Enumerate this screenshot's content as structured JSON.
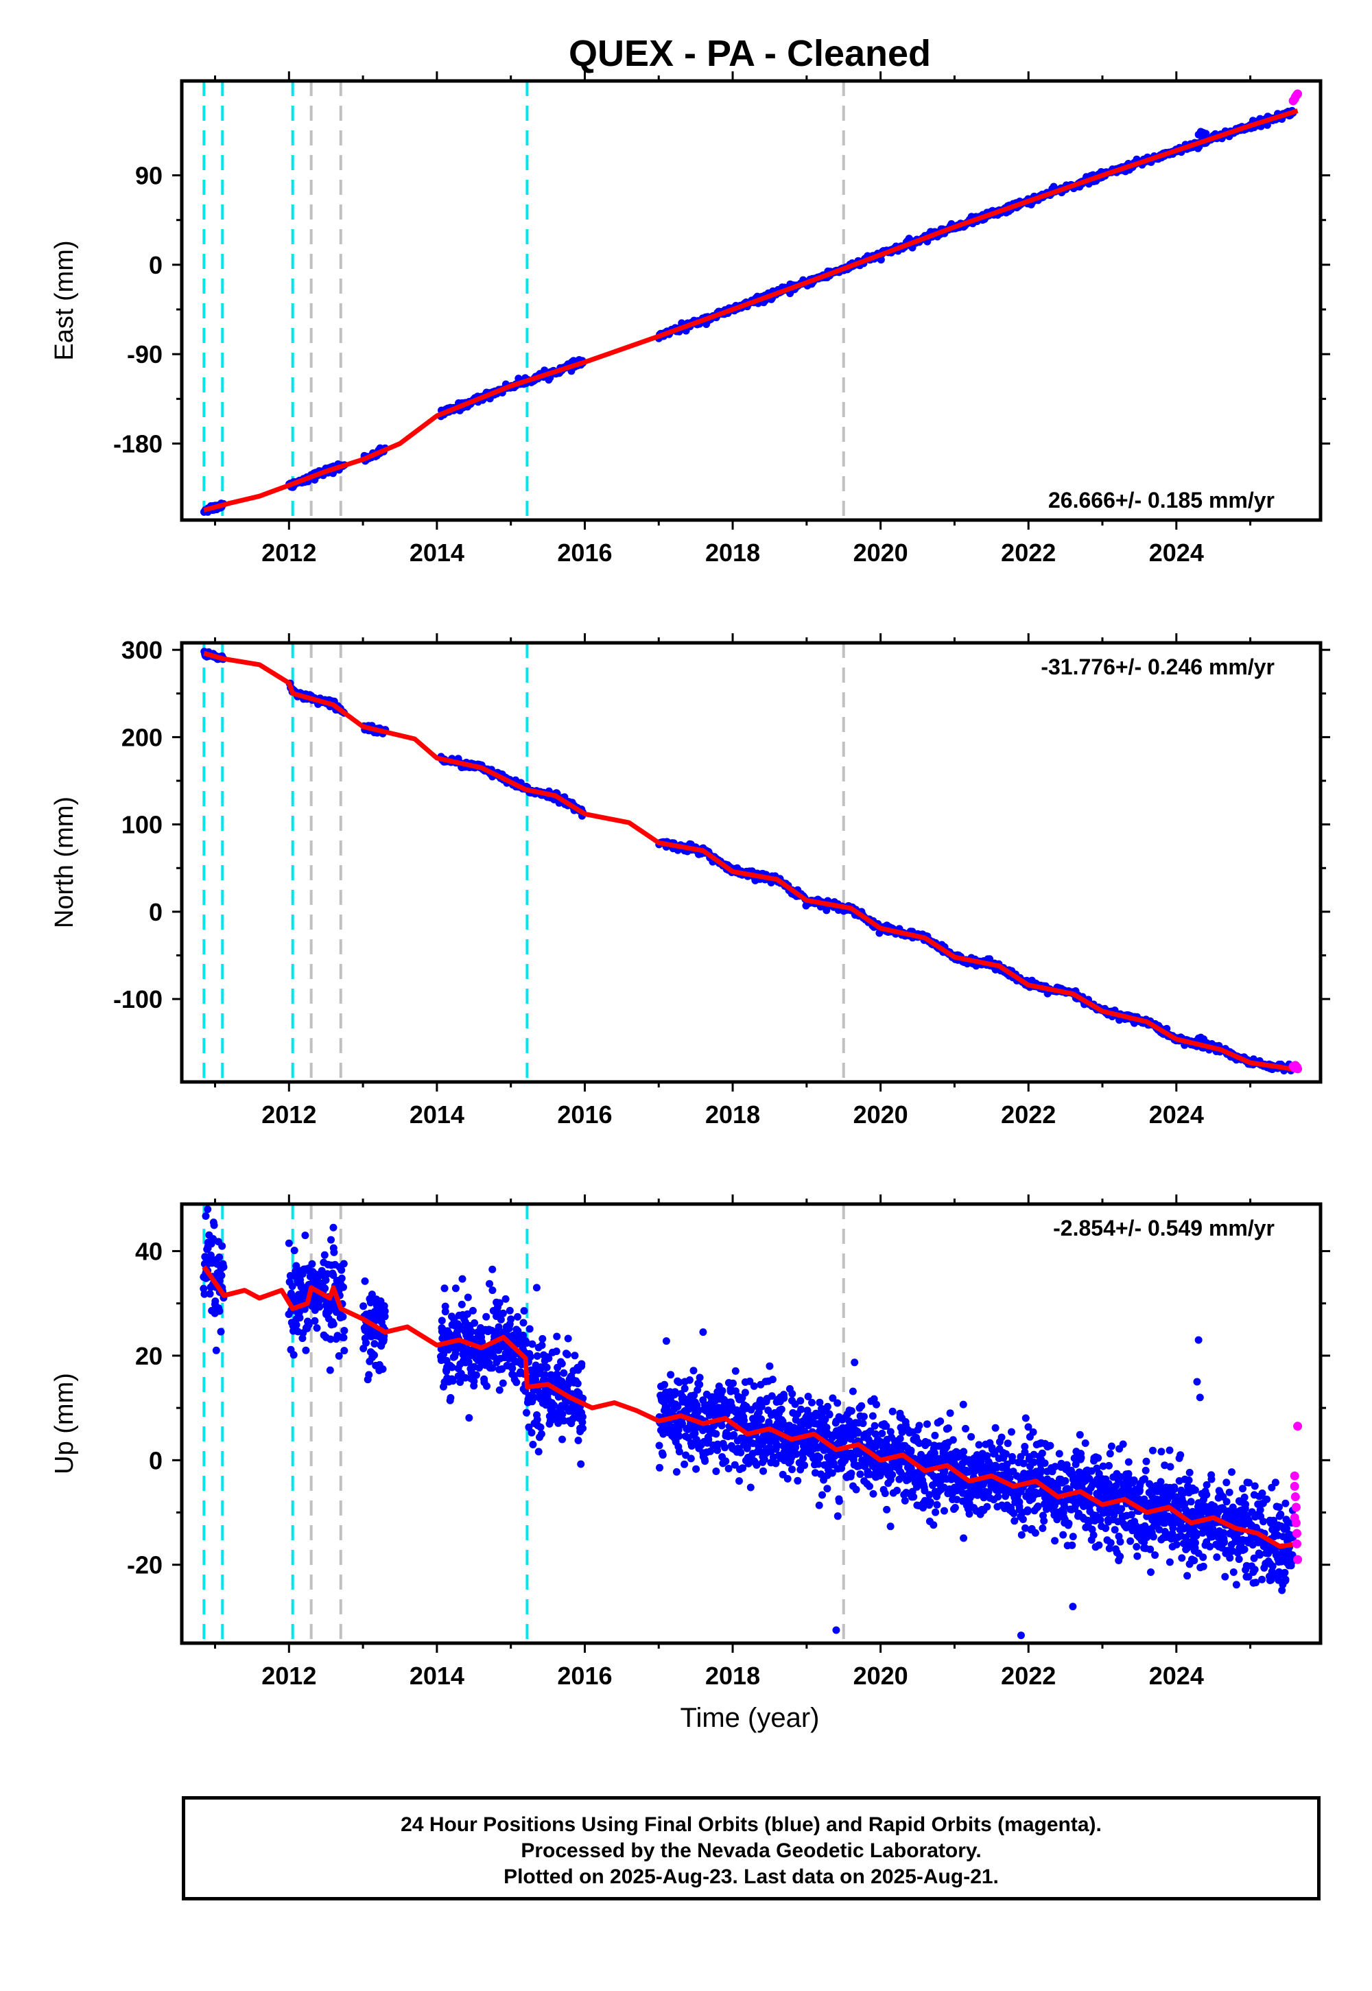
{
  "title": "QUEX  - PA - Cleaned",
  "xlabel": "Time (year)",
  "colors": {
    "final": "#0000ff",
    "rapid": "#ff00ff",
    "model": "#ff0000",
    "break_cyan": "#00e5ee",
    "break_gray": "#c0c0c0",
    "frame": "#000000"
  },
  "footer": {
    "line1": "24 Hour Positions Using Final Orbits (blue) and Rapid Orbits (magenta).",
    "line2": "Processed by the Nevada Geodetic Laboratory.",
    "line3": "Plotted on 2025-Aug-23. Last data on 2025-Aug-21."
  },
  "chart_data": [
    {
      "type": "scatter",
      "ylabel": "East (mm)",
      "rate_label": "26.666+/- 0.185 mm/yr",
      "rate_label_position": "bottom-right",
      "xlim": [
        2010.55,
        2025.95
      ],
      "ylim": [
        -257,
        185
      ],
      "yticks": [
        -180,
        -90,
        0,
        90
      ],
      "xticks": [
        2012,
        2014,
        2016,
        2018,
        2020,
        2022,
        2024
      ],
      "gaps": [
        [
          2011.12,
          2012.0
        ],
        [
          2012.75,
          2013.0
        ],
        [
          2013.3,
          2014.05
        ],
        [
          2015.98,
          2017.0
        ]
      ],
      "trend": {
        "slope": 26.666,
        "origin_year": 2019.5,
        "origin_value": -5
      },
      "scatter_sd": 1.8,
      "break_steps": [],
      "model_points": [
        {
          "x": 2010.85,
          "y": -247
        },
        {
          "x": 2011.2,
          "y": -240
        },
        {
          "x": 2011.6,
          "y": -233
        },
        {
          "x": 2012.0,
          "y": -222
        },
        {
          "x": 2012.5,
          "y": -208
        },
        {
          "x": 2013.0,
          "y": -196
        },
        {
          "x": 2013.5,
          "y": -180
        },
        {
          "x": 2014.0,
          "y": -152
        },
        {
          "x": 2015.0,
          "y": -122
        },
        {
          "x": 2016.0,
          "y": -98
        },
        {
          "x": 2017.0,
          "y": -72
        },
        {
          "x": 2018.0,
          "y": -45
        },
        {
          "x": 2019.0,
          "y": -18
        },
        {
          "x": 2020.0,
          "y": 10
        },
        {
          "x": 2021.0,
          "y": 38
        },
        {
          "x": 2022.0,
          "y": 64
        },
        {
          "x": 2023.0,
          "y": 90
        },
        {
          "x": 2024.0,
          "y": 115
        },
        {
          "x": 2025.0,
          "y": 140
        },
        {
          "x": 2025.64,
          "y": 155
        }
      ],
      "rapid_points": [
        {
          "x": 2025.58,
          "y": 165
        },
        {
          "x": 2025.6,
          "y": 167
        },
        {
          "x": 2025.61,
          "y": 169
        },
        {
          "x": 2025.63,
          "y": 171
        },
        {
          "x": 2025.64,
          "y": 172
        }
      ],
      "outliers": [
        {
          "x": 2024.3,
          "y": 131
        },
        {
          "x": 2024.33,
          "y": 134
        },
        {
          "x": 2024.36,
          "y": 133
        },
        {
          "x": 2024.4,
          "y": 132
        }
      ]
    },
    {
      "type": "scatter",
      "ylabel": "North (mm)",
      "rate_label": "-31.776+/- 0.246 mm/yr",
      "rate_label_position": "top-right",
      "xlim": [
        2010.55,
        2025.95
      ],
      "ylim": [
        -195,
        308
      ],
      "yticks": [
        -100,
        0,
        100,
        200,
        300
      ],
      "xticks": [
        2012,
        2014,
        2016,
        2018,
        2020,
        2022,
        2024
      ],
      "gaps": [
        [
          2011.12,
          2012.0
        ],
        [
          2012.75,
          2013.0
        ],
        [
          2013.3,
          2014.05
        ],
        [
          2015.98,
          2017.0
        ]
      ],
      "trend": null,
      "scatter_sd": 2.2,
      "break_steps": [],
      "model_points": [
        {
          "x": 2010.85,
          "y": 296
        },
        {
          "x": 2011.1,
          "y": 290
        },
        {
          "x": 2011.6,
          "y": 283
        },
        {
          "x": 2012.0,
          "y": 262
        },
        {
          "x": 2012.05,
          "y": 250
        },
        {
          "x": 2012.6,
          "y": 237
        },
        {
          "x": 2013.0,
          "y": 212
        },
        {
          "x": 2013.7,
          "y": 198
        },
        {
          "x": 2014.0,
          "y": 176
        },
        {
          "x": 2014.6,
          "y": 165
        },
        {
          "x": 2015.2,
          "y": 140
        },
        {
          "x": 2015.6,
          "y": 133
        },
        {
          "x": 2016.0,
          "y": 112
        },
        {
          "x": 2016.6,
          "y": 102
        },
        {
          "x": 2017.0,
          "y": 79
        },
        {
          "x": 2017.6,
          "y": 70
        },
        {
          "x": 2018.0,
          "y": 46
        },
        {
          "x": 2018.6,
          "y": 37
        },
        {
          "x": 2019.0,
          "y": 13
        },
        {
          "x": 2019.6,
          "y": 4
        },
        {
          "x": 2020.0,
          "y": -19
        },
        {
          "x": 2020.6,
          "y": -30
        },
        {
          "x": 2021.0,
          "y": -52
        },
        {
          "x": 2021.6,
          "y": -62
        },
        {
          "x": 2022.0,
          "y": -84
        },
        {
          "x": 2022.6,
          "y": -94
        },
        {
          "x": 2023.0,
          "y": -114
        },
        {
          "x": 2023.6,
          "y": -126
        },
        {
          "x": 2024.0,
          "y": -146
        },
        {
          "x": 2024.6,
          "y": -158
        },
        {
          "x": 2025.0,
          "y": -173
        },
        {
          "x": 2025.64,
          "y": -181
        }
      ],
      "rapid_points": [
        {
          "x": 2025.58,
          "y": -177
        },
        {
          "x": 2025.6,
          "y": -179
        },
        {
          "x": 2025.61,
          "y": -176
        },
        {
          "x": 2025.63,
          "y": -178
        },
        {
          "x": 2025.64,
          "y": -180
        }
      ],
      "outliers": [
        {
          "x": 2024.3,
          "y": -145
        },
        {
          "x": 2024.33,
          "y": -144
        },
        {
          "x": 2024.37,
          "y": -146
        }
      ]
    },
    {
      "type": "scatter",
      "ylabel": "Up (mm)",
      "rate_label": "-2.854+/- 0.549 mm/yr",
      "rate_label_position": "top-right",
      "xlim": [
        2010.55,
        2025.95
      ],
      "ylim": [
        -35,
        49
      ],
      "yticks": [
        -20,
        0,
        20,
        40
      ],
      "xticks": [
        2012,
        2014,
        2016,
        2018,
        2020,
        2022,
        2024
      ],
      "gaps": [
        [
          2011.12,
          2012.0
        ],
        [
          2012.75,
          2013.0
        ],
        [
          2013.3,
          2014.05
        ],
        [
          2015.98,
          2017.0
        ]
      ],
      "trend": null,
      "scatter_sd": 4.2,
      "break_steps": [],
      "model_points": [
        {
          "x": 2010.85,
          "y": 37
        },
        {
          "x": 2011.0,
          "y": 34
        },
        {
          "x": 2011.12,
          "y": 31.5
        },
        {
          "x": 2011.4,
          "y": 32.5
        },
        {
          "x": 2011.6,
          "y": 31
        },
        {
          "x": 2011.9,
          "y": 32.5
        },
        {
          "x": 2012.05,
          "y": 29
        },
        {
          "x": 2012.25,
          "y": 30
        },
        {
          "x": 2012.3,
          "y": 33
        },
        {
          "x": 2012.55,
          "y": 31
        },
        {
          "x": 2012.6,
          "y": 33
        },
        {
          "x": 2012.7,
          "y": 29
        },
        {
          "x": 2013.0,
          "y": 27
        },
        {
          "x": 2013.3,
          "y": 24.5
        },
        {
          "x": 2013.6,
          "y": 25.5
        },
        {
          "x": 2014.0,
          "y": 22
        },
        {
          "x": 2014.3,
          "y": 23
        },
        {
          "x": 2014.6,
          "y": 21.5
        },
        {
          "x": 2014.9,
          "y": 23.5
        },
        {
          "x": 2015.2,
          "y": 19.5
        },
        {
          "x": 2015.22,
          "y": 14
        },
        {
          "x": 2015.5,
          "y": 14.5
        },
        {
          "x": 2015.8,
          "y": 12
        },
        {
          "x": 2016.1,
          "y": 10
        },
        {
          "x": 2016.4,
          "y": 11
        },
        {
          "x": 2016.7,
          "y": 9.5
        },
        {
          "x": 2017.0,
          "y": 7.5
        },
        {
          "x": 2017.3,
          "y": 8.5
        },
        {
          "x": 2017.6,
          "y": 7
        },
        {
          "x": 2017.9,
          "y": 8
        },
        {
          "x": 2018.2,
          "y": 5
        },
        {
          "x": 2018.5,
          "y": 6
        },
        {
          "x": 2018.8,
          "y": 4
        },
        {
          "x": 2019.1,
          "y": 5
        },
        {
          "x": 2019.4,
          "y": 2
        },
        {
          "x": 2019.7,
          "y": 3
        },
        {
          "x": 2020.0,
          "y": 0
        },
        {
          "x": 2020.3,
          "y": 1
        },
        {
          "x": 2020.6,
          "y": -2
        },
        {
          "x": 2020.9,
          "y": -1
        },
        {
          "x": 2021.2,
          "y": -4
        },
        {
          "x": 2021.5,
          "y": -3
        },
        {
          "x": 2021.8,
          "y": -5
        },
        {
          "x": 2022.1,
          "y": -4
        },
        {
          "x": 2022.4,
          "y": -7
        },
        {
          "x": 2022.7,
          "y": -6
        },
        {
          "x": 2023.0,
          "y": -8.5
        },
        {
          "x": 2023.3,
          "y": -7.5
        },
        {
          "x": 2023.6,
          "y": -10
        },
        {
          "x": 2023.9,
          "y": -9
        },
        {
          "x": 2024.2,
          "y": -12
        },
        {
          "x": 2024.5,
          "y": -11
        },
        {
          "x": 2024.8,
          "y": -13
        },
        {
          "x": 2025.1,
          "y": -14
        },
        {
          "x": 2025.4,
          "y": -16.5
        },
        {
          "x": 2025.64,
          "y": -16
        }
      ],
      "rapid_points": [
        {
          "x": 2025.6,
          "y": -3
        },
        {
          "x": 2025.6,
          "y": -5
        },
        {
          "x": 2025.61,
          "y": -7
        },
        {
          "x": 2025.62,
          "y": -9
        },
        {
          "x": 2025.62,
          "y": -12
        },
        {
          "x": 2025.63,
          "y": -14
        },
        {
          "x": 2025.63,
          "y": -16
        },
        {
          "x": 2025.64,
          "y": -19
        },
        {
          "x": 2025.64,
          "y": 6.5
        },
        {
          "x": 2025.6,
          "y": -11
        }
      ],
      "outliers": [
        {
          "x": 2010.9,
          "y": 48
        },
        {
          "x": 2010.98,
          "y": 45.5
        },
        {
          "x": 2012.6,
          "y": 44.5
        },
        {
          "x": 2019.4,
          "y": -32.5
        },
        {
          "x": 2021.9,
          "y": -33.5
        },
        {
          "x": 2022.6,
          "y": -28
        },
        {
          "x": 2024.3,
          "y": 23
        },
        {
          "x": 2024.28,
          "y": 15
        },
        {
          "x": 2024.32,
          "y": 12
        },
        {
          "x": 2017.6,
          "y": 24.5
        },
        {
          "x": 2018.5,
          "y": 18
        },
        {
          "x": 2014.75,
          "y": 36.5
        },
        {
          "x": 2015.35,
          "y": 33
        },
        {
          "x": 2012.0,
          "y": 41.5
        }
      ]
    }
  ],
  "break_lines": [
    {
      "x": 2010.85,
      "kind": "cyan"
    },
    {
      "x": 2011.1,
      "kind": "cyan"
    },
    {
      "x": 2012.05,
      "kind": "cyan"
    },
    {
      "x": 2012.3,
      "kind": "gray"
    },
    {
      "x": 2012.7,
      "kind": "gray"
    },
    {
      "x": 2015.22,
      "kind": "cyan"
    },
    {
      "x": 2019.5,
      "kind": "gray"
    }
  ]
}
